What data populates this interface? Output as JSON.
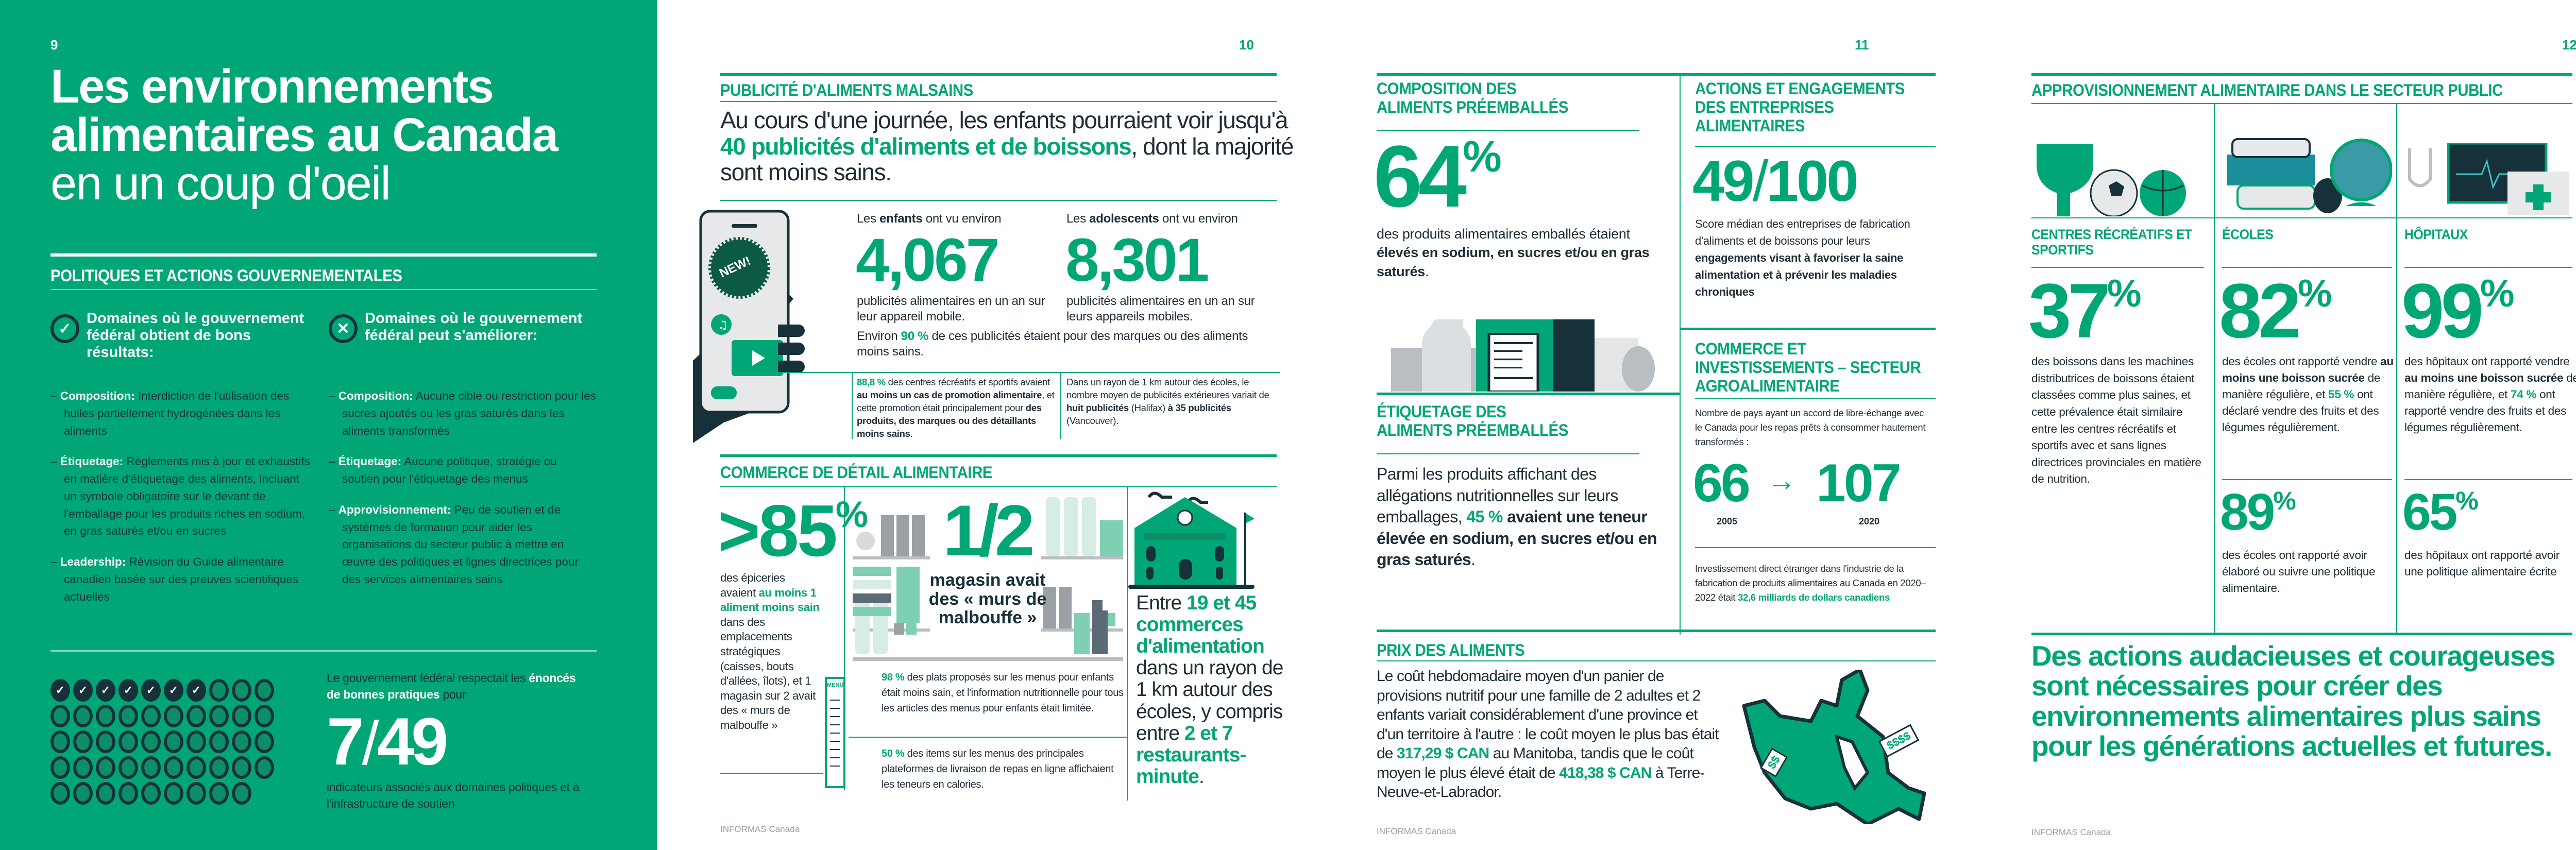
{
  "colors": {
    "accent": "#00a676",
    "dark": "#17313b"
  },
  "page9": {
    "number": "9",
    "title_line1": "Les environnements",
    "title_line2": "alimentaires au Canada",
    "title_line3": "en un coup d'oeil",
    "section_heading": "POLITIQUES ET ACTIONS GOUVERNEMENTALES",
    "good": {
      "icon": "check-circle-icon",
      "glyph": "✓",
      "heading": "Domaines où le gouvernement fédéral obtient de bons résultats:",
      "items": [
        {
          "label": "Composition:",
          "text": "Interdiction de l'utilisation des huiles partiellement hydrogénées dans les aliments"
        },
        {
          "label": "Étiquetage:",
          "text": "Règlements mis à jour et exhaustifs en matière d'étiquetage des aliments, incluant un symbole obligatoire sur le devant de l'emballage pour les produits riches en sodium, en gras saturés et/ou en sucres"
        },
        {
          "label": "Leadership:",
          "text": "Révision du Guide alimentaire canadien basée sur des preuves scientifiques actuelles"
        }
      ]
    },
    "improve": {
      "icon": "x-circle-icon",
      "glyph": "✕",
      "heading": "Domaines où le gouvernement fédéral peut s'améliorer:",
      "items": [
        {
          "label": "Composition:",
          "text": "Aucune cible ou restriction pour les sucres ajoutés ou les gras saturés dans les aliments transformés"
        },
        {
          "label": "Étiquetage:",
          "text": "Aucune politique, stratégie ou soutien pour l'étiquetage des menus"
        },
        {
          "label": "Approvisionnement:",
          "text": "Peu de soutien et de systèmes de formation pour aider les organisations du secteur public à mettre en œuvre des politiques et lignes directrices pour des services alimentaires sains"
        }
      ]
    },
    "score": {
      "intro_pre": "Le gouvernement fédéral respectait les",
      "intro_bold": "énoncés de bonnes pratiques",
      "intro_post": "pour",
      "met": 7,
      "separator": "/",
      "total": 49,
      "caption": "indicateurs associés aux domaines politiques et à l'infrastructure de soutien"
    }
  },
  "page10": {
    "number": "10",
    "ads": {
      "heading": "PUBLICITÉ D'ALIMENTS MALSAINS",
      "lead_pre": "Au cours d'une journée, les enfants pourraient voir jusqu'à",
      "lead_highlight": "40 publicités d'aliments et de boissons",
      "lead_post": ", dont la majorité sont moins sains.",
      "badge": "NEW!",
      "children": {
        "pre": "Les",
        "bold": "enfants",
        "post": "ont vu environ",
        "value": "4,067",
        "caption": "publicités alimentaires en un an sur leur appareil mobile."
      },
      "teens": {
        "pre": "Les",
        "bold": "adolescents",
        "post": "ont vu environ",
        "value": "8,301",
        "caption": "publicités alimentaires en un an sur leurs appareils mobiles."
      },
      "share": {
        "pre": "Environ",
        "highlight": "90 %",
        "post": "de ces publicités étaient pour des marques ou des aliments moins sains."
      },
      "note1": {
        "highlight": "88,8 %",
        "t1": "des centres récréatifs et sportifs avaient",
        "b1": "au moins un cas de promotion alimentaire",
        "t2": ", et cette promotion était principalement pour",
        "b2": "des produits, des marques ou des détaillants moins sains",
        "t3": "."
      },
      "note2": {
        "t1": "Dans un rayon de 1 km autour des écoles, le nombre moyen de publicités extérieures variait de",
        "b1": "huit publicités",
        "t2": "(Halifax)",
        "b2": "à 35 publicités",
        "t3": "(Vancouver)."
      }
    },
    "retail": {
      "heading": "COMMERCE DE DÉTAIL ALIMENTAIRE",
      "stat1": {
        "value": ">85",
        "unit": "%",
        "t1": "des épiceries avaient",
        "highlight": "au moins 1 aliment moins sain",
        "t2": "dans des emplacements stratégiques (caisses, bouts d'allées, îlots), et 1 magasin sur 2 avait des « murs de malbouffe »"
      },
      "stat2": {
        "value": "1/2",
        "caption": "magasin avait des « murs de malbouffe »"
      },
      "menu_label": "MENU",
      "stat3": {
        "highlight": "98 %",
        "text": "des plats proposés sur les menus pour enfants était moins sain, et l'information nutritionnelle pour tous les articles des menus pour enfants était limitée."
      },
      "stat4": {
        "highlight": "50 %",
        "text": "des items sur les menus des principales plateformes de livraison de repas en ligne affichaient les teneurs en calories."
      },
      "stat5": {
        "t1": "Entre",
        "h1": "19 et 45 commerces d'alimentation",
        "t2": "dans un rayon de 1 km autour des écoles, y compris entre",
        "h2": "2 et 7 restaurants-minute",
        "t3": "."
      }
    },
    "footer": "INFORMAS Canada"
  },
  "page11": {
    "number": "11",
    "composition": {
      "heading": "COMPOSITION DES ALIMENTS PRÉEMBALLÉS",
      "value": "64",
      "unit": "%",
      "t1": "des produits alimentaires emballés étaient",
      "bold": "élevés en sodium, en sucres et/ou en gras saturés",
      "t2": "."
    },
    "labelling": {
      "heading": "ÉTIQUETAGE DES ALIMENTS PRÉEMBALLÉS",
      "t1": "Parmi les produits affichant des allégations nutritionnelles sur leurs emballages,",
      "highlight": "45 %",
      "bold": "avaient une teneur élevée en sodium, en sucres et/ou en gras saturés",
      "t2": "."
    },
    "industry": {
      "heading": "ACTIONS ET ENGAGEMENTS DES ENTREPRISES ALIMENTAIRES",
      "score": "49",
      "separator": "/",
      "max": "100",
      "t1": "Score médian des entreprises de fabrication d'aliments et de boissons pour leurs",
      "bold": "engagements visant à favoriser la saine alimentation et à prévenir les maladies chroniques"
    },
    "trade": {
      "heading": "COMMERCE ET INVESTISSEMENTS – SECTEUR AGROALIMENTAIRE",
      "intro": "Nombre de pays ayant un accord de libre-échange avec le Canada pour les repas prêts à consommer hautement transformés :",
      "from_value": "66",
      "from_year": "2005",
      "arrow": "→",
      "to_value": "107",
      "to_year": "2020",
      "fdi_text": "Investissement direct étranger dans l'industrie de la fabrication de produits alimentaires au Canada en 2020–2022 était",
      "fdi_highlight": "32,6 milliards de dollars canadiens"
    },
    "prices": {
      "heading": "PRIX DES ALIMENTS",
      "t1": "Le coût hebdomadaire moyen d'un panier de provisions nutritif pour une famille de 2 adultes et 2 enfants variait considérablement d'une province et d'un territoire à l'autre : le coût moyen le plus bas était de",
      "h1": "317,29 $ CAN",
      "t2": "au Manitoba, tandis que le coût moyen le plus élevé était de",
      "h2": "418,38 $ CAN",
      "t3": "à Terre-Neuve-et-Labrador.",
      "tag_low": "$$",
      "tag_high": "$$$$"
    },
    "footer": "INFORMAS Canada"
  },
  "page12": {
    "number": "12",
    "heading": "APPROVISIONNEMENT ALIMENTAIRE DANS LE SECTEUR PUBLIC",
    "rec": {
      "label": "CENTRES RÉCRÉATIFS ET SPORTIFS",
      "value": "37",
      "unit": "%",
      "text": "des boissons dans les machines distributrices de boissons étaient classées comme plus saines, et cette prévalence était similaire entre les centres récréatifs et sportifs avec et sans lignes directrices provinciales en matière de nutrition."
    },
    "schools": {
      "label": "ÉCOLES",
      "value": "82",
      "unit": "%",
      "t1": "des écoles ont rapporté vendre",
      "bold": "au moins une boisson sucrée",
      "t2": "de manière régulière, et",
      "highlight": "55 %",
      "t3": "ont déclaré vendre des fruits et des légumes régulièrement.",
      "value2": "89",
      "text2": "des écoles ont rapporté avoir élaboré ou suivre une politique alimentaire."
    },
    "hospitals": {
      "label": "HÔPITAUX",
      "value": "99",
      "unit": "%",
      "t1": "des hôpitaux ont rapporté vendre",
      "bold": "au moins une boisson sucrée",
      "t2": "de manière régulière, et",
      "highlight": "74 %",
      "t3": "ont rapporté vendre des fruits et des légumes régulièrement.",
      "value2": "65",
      "text2": "des hôpitaux ont rapporté avoir une politique alimentaire écrite"
    },
    "closing": "Des actions audacieuses et courageuses sont nécessaires pour créer des environnements alimentaires plus sains pour les générations actuelles et futures.",
    "footer": "INFORMAS Canada"
  }
}
